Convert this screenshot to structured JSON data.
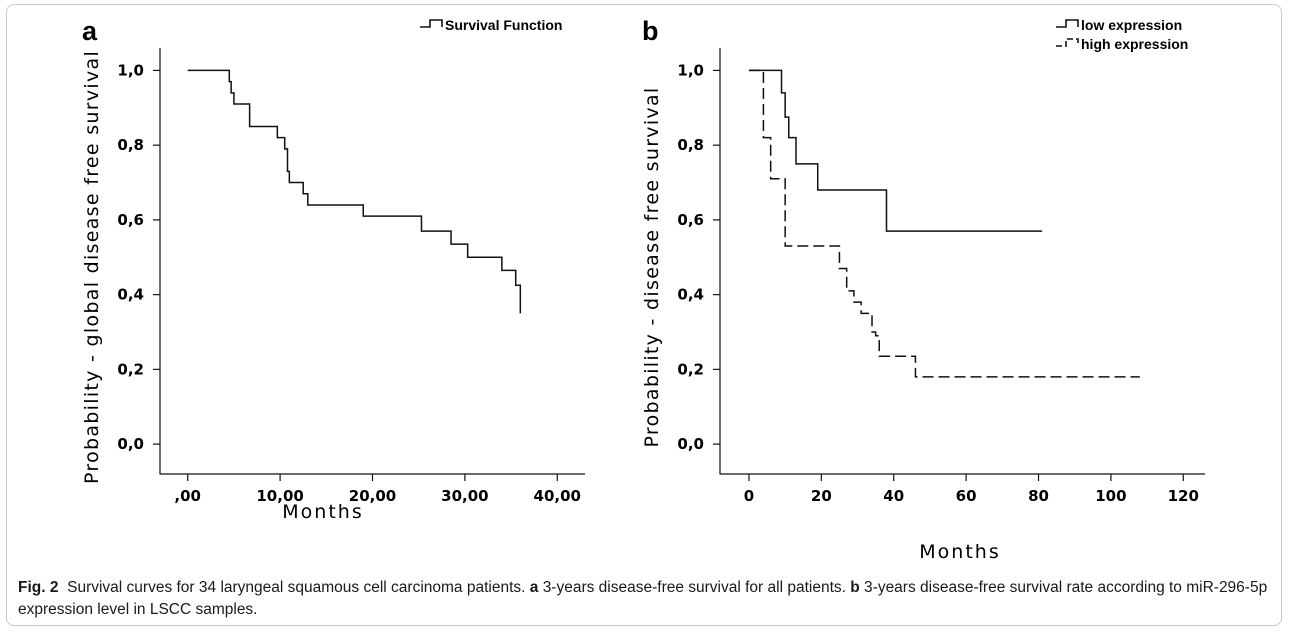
{
  "chart_data": [
    {
      "panel_label": "a",
      "type": "line",
      "step": true,
      "ylabel": "Probability - global disease free survival",
      "xlabel": "Months",
      "xlim": [
        -3,
        43
      ],
      "ylim": [
        -0.08,
        1.06
      ],
      "xticks": [
        0,
        10,
        20,
        30,
        40
      ],
      "xtick_labels": [
        ",00",
        "10,00",
        "20,00",
        "30,00",
        "40,00"
      ],
      "yticks": [
        0,
        0.2,
        0.4,
        0.6,
        0.8,
        1.0
      ],
      "ytick_labels": [
        "0,0",
        "0,2",
        "0,4",
        "0,6",
        "0,8",
        "1,0"
      ],
      "legend_position": "top-right",
      "series": [
        {
          "name": "Survival Function",
          "dash": "solid",
          "x": [
            0,
            4.5,
            4.7,
            5.0,
            6.7,
            9.7,
            10.5,
            10.8,
            11.0,
            12.5,
            13.0,
            19.0,
            25.3,
            28.0,
            28.5,
            30.3,
            34.0,
            35.5,
            35.8,
            36.0
          ],
          "y": [
            1.0,
            0.97,
            0.94,
            0.91,
            0.85,
            0.82,
            0.79,
            0.73,
            0.7,
            0.67,
            0.64,
            0.61,
            0.57,
            0.57,
            0.535,
            0.5,
            0.465,
            0.425,
            0.425,
            0.35
          ]
        }
      ]
    },
    {
      "panel_label": "b",
      "type": "line",
      "step": true,
      "ylabel": "Probability - disease free survival",
      "xlabel": "Months",
      "xlim": [
        -8,
        126
      ],
      "ylim": [
        -0.08,
        1.06
      ],
      "xticks": [
        0,
        20,
        40,
        60,
        80,
        100,
        120
      ],
      "xtick_labels": [
        "0",
        "20",
        "40",
        "60",
        "80",
        "100",
        "120"
      ],
      "yticks": [
        0,
        0.2,
        0.4,
        0.6,
        0.8,
        1.0
      ],
      "ytick_labels": [
        "0,0",
        "0,2",
        "0,4",
        "0,6",
        "0,8",
        "1,0"
      ],
      "legend_position": "top-right",
      "series": [
        {
          "name": "low expression",
          "dash": "solid",
          "x": [
            0,
            9,
            10,
            11,
            13,
            19,
            38,
            81
          ],
          "y": [
            1.0,
            0.94,
            0.875,
            0.82,
            0.75,
            0.68,
            0.57,
            0.57
          ]
        },
        {
          "name": "high expression",
          "dash": "dashed",
          "x": [
            0,
            4,
            6,
            10,
            25,
            27,
            29,
            31,
            34,
            35,
            36,
            46,
            108
          ],
          "y": [
            1.0,
            0.82,
            0.71,
            0.53,
            0.47,
            0.41,
            0.38,
            0.35,
            0.3,
            0.29,
            0.235,
            0.18,
            0.18
          ]
        }
      ]
    }
  ],
  "caption": {
    "fig_label": "Fig. 2",
    "intro": "Survival curves for 34 laryngeal squamous cell carcinoma patients.",
    "a_label": "a",
    "a_text": "3-years disease-free survival for all patients.",
    "b_label": "b",
    "b_text": "3-years disease-free survival rate according to miR-296-5p expression level in LSCC samples."
  },
  "colors": {
    "line": "#111111",
    "frame": "#c9c9c9",
    "text": "#1a1a1a"
  }
}
